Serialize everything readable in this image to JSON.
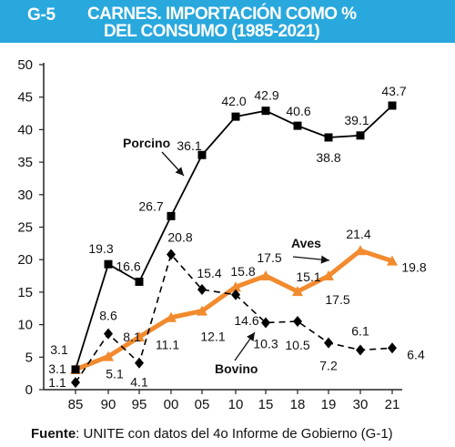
{
  "header": {
    "code": "G-5",
    "title_line1": "CARNES. IMPORTACIÓN COMO %",
    "title_line2": "DEL CONSUMO (1985-2021)"
  },
  "footer": {
    "label": "Fuente",
    "text": ": UNITE con datos del 4o Informe de Gobierno (G-1)"
  },
  "colors": {
    "header_bg": "#29a8dd",
    "porcino": "#000000",
    "bovino": "#000000",
    "aves": "#f28a2e"
  },
  "chart_data": {
    "type": "line",
    "categories": [
      "85",
      "90",
      "95",
      "00",
      "05",
      "10",
      "15",
      "18",
      "19",
      "30",
      "21"
    ],
    "ylim": [
      0,
      50
    ],
    "yticks": [
      0,
      5,
      10,
      15,
      20,
      25,
      30,
      35,
      40,
      45,
      50
    ],
    "grid": false,
    "series": [
      {
        "name": "Porcino",
        "marker": "square",
        "line_style": "solid",
        "values": [
          3.1,
          19.3,
          16.6,
          26.7,
          36.1,
          42.0,
          42.9,
          40.6,
          38.8,
          39.1,
          43.7
        ],
        "labels": [
          "3.1",
          "19.3",
          "16.6",
          "26.7",
          "36.1",
          "42.0",
          "42.9",
          "40.6",
          "38.8",
          "39.1",
          "43.7"
        ]
      },
      {
        "name": "Bovino",
        "marker": "diamond",
        "line_style": "dashed",
        "values": [
          1.1,
          8.6,
          4.1,
          20.8,
          15.4,
          14.6,
          10.3,
          10.5,
          7.2,
          6.1,
          6.4
        ],
        "labels": [
          "1.1",
          "8.6",
          "4.1",
          "20.8",
          "15.4",
          "14.6",
          "10.3",
          "10.5",
          "7.2",
          "6.1",
          "6.4"
        ]
      },
      {
        "name": "Aves",
        "marker": "triangle",
        "line_style": "solid",
        "values": [
          3.1,
          5.1,
          8.1,
          11.1,
          12.1,
          15.8,
          17.5,
          15.1,
          17.5,
          21.4,
          19.8
        ],
        "labels": [
          "3.1",
          "5.1",
          "8.1",
          "11.1",
          "12.1",
          "15.8",
          "17.5",
          "15.1",
          "17.5",
          "21.4",
          "19.8"
        ]
      }
    ]
  }
}
